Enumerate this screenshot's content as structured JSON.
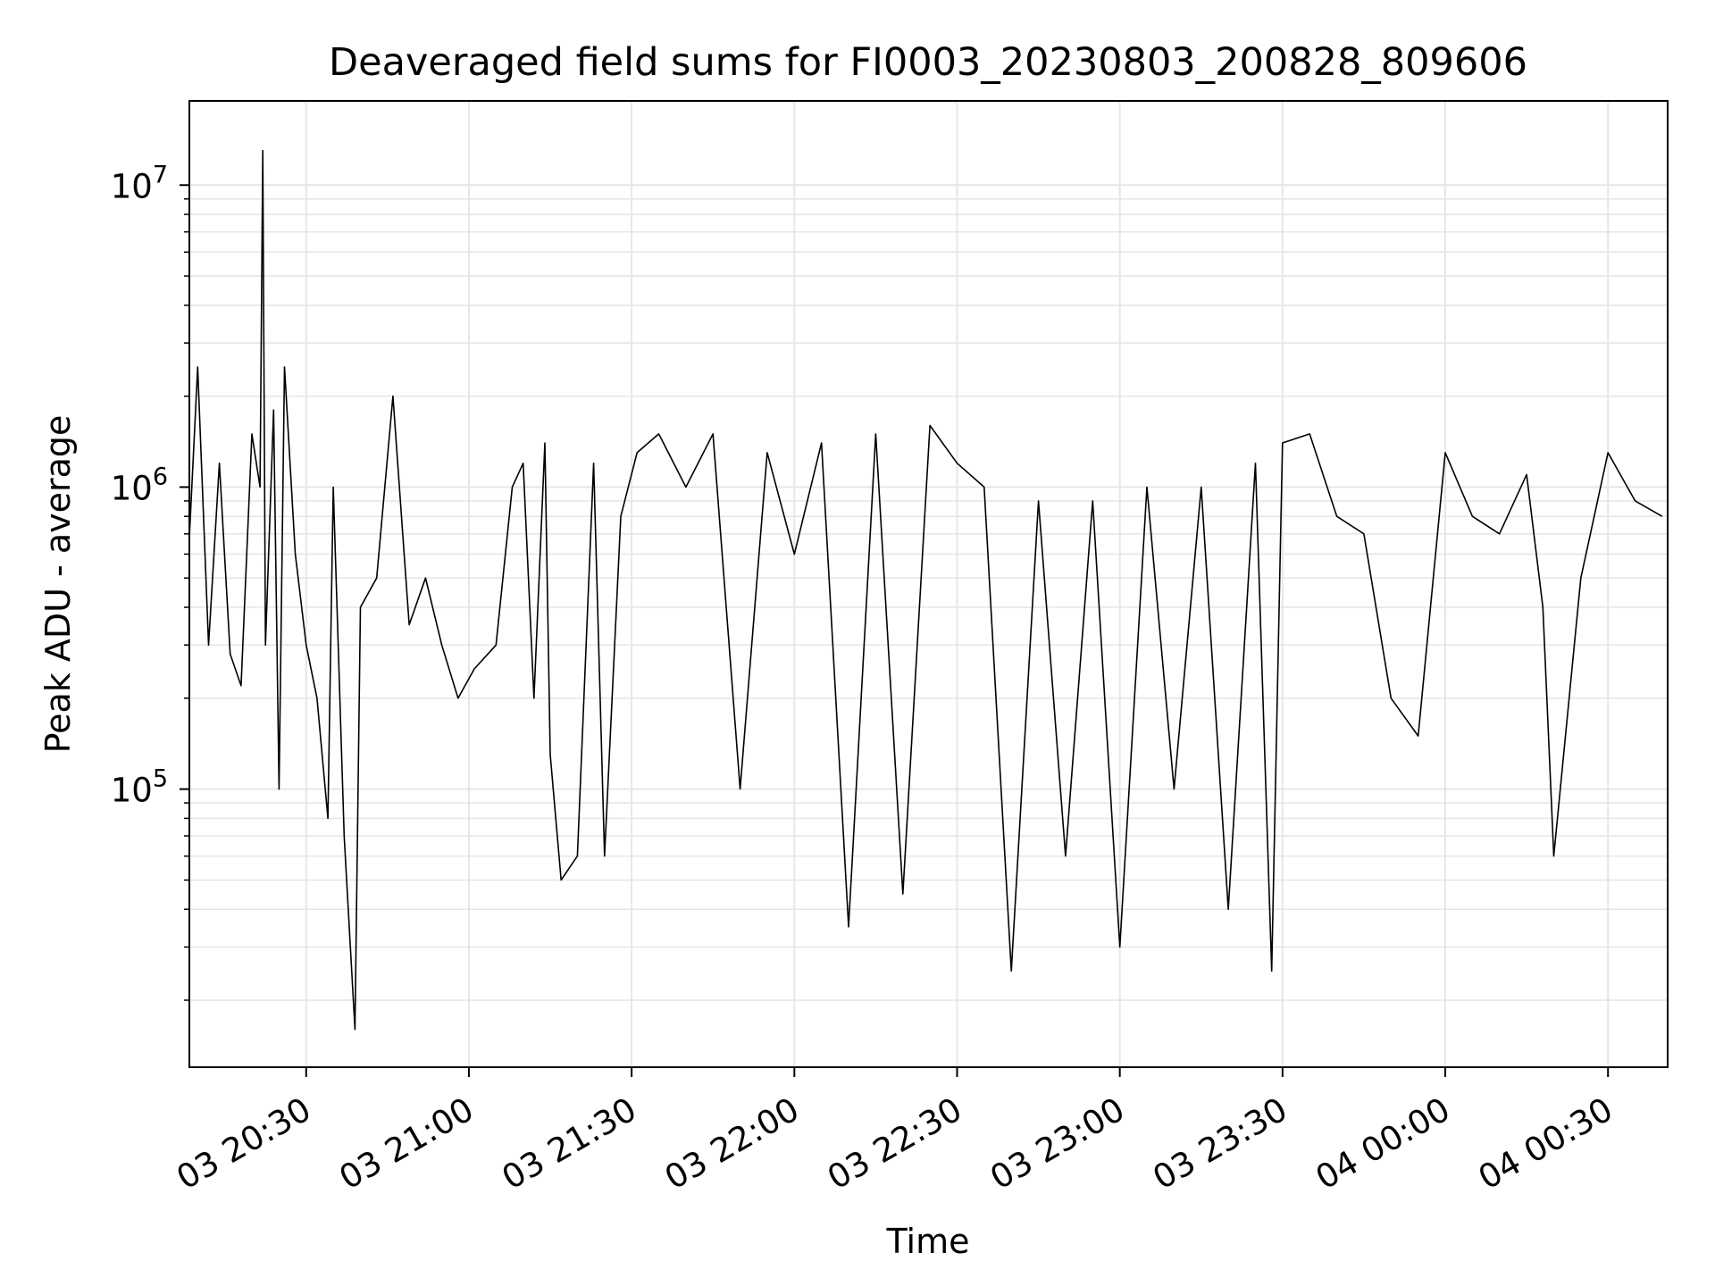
{
  "chart_data": {
    "type": "line",
    "title": "Deaveraged field sums for FI0003_20230803_200828_809606",
    "xlabel": "Time",
    "ylabel": "Peak ADU - average",
    "y_scale": "log",
    "grid": "on",
    "legend": "none",
    "line_color": "#000000",
    "grid_color": "#e6e6e6",
    "xlim": [
      "2023-08-03 20:08:28",
      "2023-08-04 00:41:00"
    ],
    "ylim": [
      12000,
      19000000
    ],
    "x_ticks": [
      "03 20:30",
      "03 21:00",
      "03 21:30",
      "03 22:00",
      "03 22:30",
      "03 23:00",
      "03 23:30",
      "04 00:00",
      "04 00:30"
    ],
    "x_tick_times": [
      "2023-08-03 20:30",
      "2023-08-03 21:00",
      "2023-08-03 21:30",
      "2023-08-03 22:00",
      "2023-08-03 22:30",
      "2023-08-03 23:00",
      "2023-08-03 23:30",
      "2023-08-04 00:00",
      "2023-08-04 00:30"
    ],
    "y_ticks": [
      {
        "base": "10",
        "exp": "5",
        "value": 100000
      },
      {
        "base": "10",
        "exp": "6",
        "value": 1000000
      },
      {
        "base": "10",
        "exp": "7",
        "value": 10000000
      }
    ],
    "series": [
      {
        "x": [
          "2023-08-03 20:08:30",
          "2023-08-03 20:10:00",
          "2023-08-03 20:12:00",
          "2023-08-03 20:14:00",
          "2023-08-03 20:16:00",
          "2023-08-03 20:18:00",
          "2023-08-03 20:20:00",
          "2023-08-03 20:21:30",
          "2023-08-03 20:22:00",
          "2023-08-03 20:22:30",
          "2023-08-03 20:24:00",
          "2023-08-03 20:25:00",
          "2023-08-03 20:26:00",
          "2023-08-03 20:28:00",
          "2023-08-03 20:30:00",
          "2023-08-03 20:32:00",
          "2023-08-03 20:34:00",
          "2023-08-03 20:35:00",
          "2023-08-03 20:37:00",
          "2023-08-03 20:39:00",
          "2023-08-03 20:40:00",
          "2023-08-03 20:43:00",
          "2023-08-03 20:46:00",
          "2023-08-03 20:49:00",
          "2023-08-03 20:52:00",
          "2023-08-03 20:55:00",
          "2023-08-03 20:58:00",
          "2023-08-03 21:01:00",
          "2023-08-03 21:05:00",
          "2023-08-03 21:08:00",
          "2023-08-03 21:10:00",
          "2023-08-03 21:12:00",
          "2023-08-03 21:14:00",
          "2023-08-03 21:15:00",
          "2023-08-03 21:17:00",
          "2023-08-03 21:20:00",
          "2023-08-03 21:23:00",
          "2023-08-03 21:25:00",
          "2023-08-03 21:28:00",
          "2023-08-03 21:31:00",
          "2023-08-03 21:35:00",
          "2023-08-03 21:40:00",
          "2023-08-03 21:45:00",
          "2023-08-03 21:50:00",
          "2023-08-03 21:55:00",
          "2023-08-03 22:00:00",
          "2023-08-03 22:05:00",
          "2023-08-03 22:10:00",
          "2023-08-03 22:15:00",
          "2023-08-03 22:20:00",
          "2023-08-03 22:25:00",
          "2023-08-03 22:30:00",
          "2023-08-03 22:35:00",
          "2023-08-03 22:40:00",
          "2023-08-03 22:45:00",
          "2023-08-03 22:50:00",
          "2023-08-03 22:55:00",
          "2023-08-03 23:00:00",
          "2023-08-03 23:05:00",
          "2023-08-03 23:10:00",
          "2023-08-03 23:15:00",
          "2023-08-03 23:20:00",
          "2023-08-03 23:25:00",
          "2023-08-03 23:28:00",
          "2023-08-03 23:30:00",
          "2023-08-03 23:35:00",
          "2023-08-03 23:40:00",
          "2023-08-03 23:45:00",
          "2023-08-03 23:50:00",
          "2023-08-03 23:55:00",
          "2023-08-04 00:00:00",
          "2023-08-04 00:05:00",
          "2023-08-04 00:10:00",
          "2023-08-04 00:15:00",
          "2023-08-04 00:18:00",
          "2023-08-04 00:20:00",
          "2023-08-04 00:25:00",
          "2023-08-04 00:30:00",
          "2023-08-04 00:35:00",
          "2023-08-04 00:40:00"
        ],
        "y": [
          700000,
          2500000,
          300000,
          1200000,
          280000,
          220000,
          1500000,
          1000000,
          13000000,
          300000,
          1800000,
          100000,
          2500000,
          600000,
          300000,
          200000,
          80000,
          1000000,
          70000,
          16000,
          400000,
          500000,
          2000000,
          350000,
          500000,
          300000,
          200000,
          250000,
          300000,
          1000000,
          1200000,
          200000,
          1400000,
          130000,
          50000,
          60000,
          1200000,
          60000,
          800000,
          1300000,
          1500000,
          1000000,
          1500000,
          100000,
          1300000,
          600000,
          1400000,
          35000,
          1500000,
          45000,
          1600000,
          1200000,
          1000000,
          25000,
          900000,
          60000,
          900000,
          30000,
          1000000,
          100000,
          1000000,
          40000,
          1200000,
          25000,
          1400000,
          1500000,
          800000,
          700000,
          200000,
          150000,
          1300000,
          800000,
          700000,
          1100000,
          400000,
          60000,
          500000,
          1300000,
          900000,
          800000
        ]
      }
    ]
  }
}
